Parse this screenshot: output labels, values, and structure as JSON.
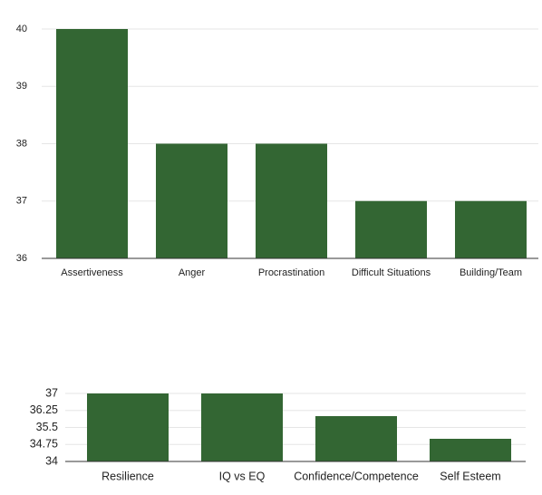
{
  "chart_data": [
    {
      "type": "bar",
      "title": "",
      "xlabel": "",
      "ylabel": "",
      "categories": [
        "Assertiveness",
        "Anger",
        "Procrastination",
        "Difficult Situations",
        "Building/Team"
      ],
      "values": [
        40,
        38,
        38,
        37,
        37
      ],
      "ylim": [
        36,
        40
      ],
      "yticks": [
        "36",
        "37",
        "38",
        "39",
        "40"
      ],
      "grid": true,
      "bar_color": "#336633"
    },
    {
      "type": "bar",
      "title": "",
      "xlabel": "",
      "ylabel": "",
      "categories": [
        "Resilience",
        "IQ vs EQ",
        "Confidence/Competence",
        "Self Esteem"
      ],
      "values": [
        37,
        37,
        36,
        35
      ],
      "ylim": [
        34,
        37
      ],
      "yticks": [
        "34",
        "34.75",
        "35.5",
        "36.25",
        "37"
      ],
      "grid": true,
      "bar_color": "#336633"
    }
  ]
}
